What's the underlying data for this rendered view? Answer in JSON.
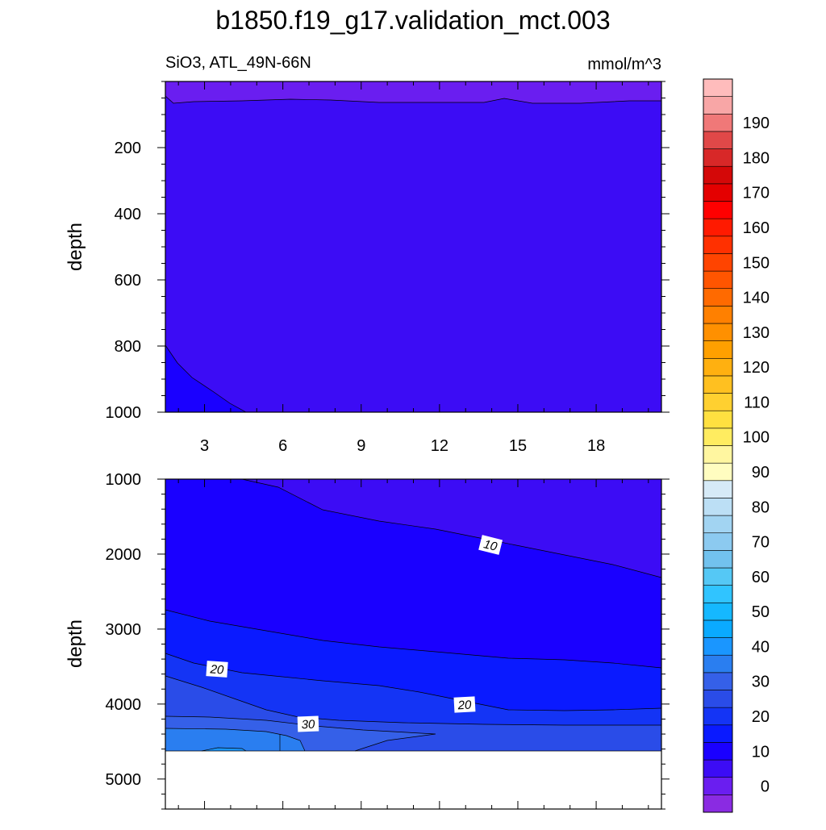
{
  "chart_data": [
    {
      "type": "contour",
      "panel": "top",
      "title": "b1850.f19_g17.validation_mct.003",
      "subtitle_left": "SiO3, ATL_49N-66N",
      "subtitle_right": "mmol/m^3",
      "ylabel": "depth",
      "xlabel": "",
      "xlim": [
        1.5,
        20.5
      ],
      "ylim": [
        1000,
        0
      ],
      "x_ticks": [
        3,
        6,
        9,
        12,
        15,
        18
      ],
      "x_tick_labels": [
        "3",
        "6",
        "9",
        "12",
        "15",
        "18"
      ],
      "y_ticks": [
        200,
        400,
        600,
        800,
        1000
      ],
      "y_tick_labels": [
        "200",
        "400",
        "600",
        "800",
        "1000"
      ],
      "contour_levels_shown": [
        5,
        10
      ],
      "contour_labels": []
    },
    {
      "type": "contour",
      "panel": "bottom",
      "ylabel": "depth",
      "xlabel": "",
      "xlim": [
        1.5,
        20.5
      ],
      "ylim": [
        5400,
        1000
      ],
      "y_ticks": [
        1000,
        2000,
        3000,
        4000,
        5000
      ],
      "y_tick_labels": [
        "1000",
        "2000",
        "3000",
        "4000",
        "5000"
      ],
      "contour_levels_shown": [
        5,
        10,
        15,
        20,
        25,
        30,
        35
      ],
      "contour_labels": [
        "10",
        "20",
        "20",
        "30"
      ]
    }
  ],
  "colorbar": {
    "orientation": "vertical",
    "levels": [
      -5,
      0,
      5,
      10,
      15,
      20,
      25,
      30,
      35,
      40,
      45,
      50,
      55,
      60,
      65,
      70,
      75,
      80,
      85,
      90,
      95,
      100,
      105,
      110,
      115,
      120,
      125,
      130,
      135,
      140,
      145,
      150,
      155,
      160,
      165,
      170,
      175,
      180,
      185,
      190,
      195,
      200
    ],
    "tick_labels": [
      "0",
      "10",
      "20",
      "30",
      "40",
      "50",
      "60",
      "70",
      "80",
      "90",
      "100",
      "110",
      "120",
      "130",
      "140",
      "150",
      "160",
      "170",
      "180",
      "190"
    ],
    "colors": [
      "#8a2be2",
      "#6a1ef0",
      "#3c0cf5",
      "#1a00ff",
      "#0a1aff",
      "#1434f5",
      "#2a4ce8",
      "#3560e8",
      "#2a7ef0",
      "#1a96ff",
      "#0aaaff",
      "#15b8ff",
      "#30c4ff",
      "#55c8f5",
      "#72c2ee",
      "#8ccaf0",
      "#a2d4f2",
      "#bcdff5",
      "#d6eaf7",
      "#fffdc0",
      "#fff6a0",
      "#ffec60",
      "#ffe040",
      "#ffd030",
      "#ffc020",
      "#ffb010",
      "#ffa000",
      "#ff9000",
      "#ff8000",
      "#ff6a00",
      "#ff5500",
      "#ff4400",
      "#ff3000",
      "#ff1a00",
      "#ff0000",
      "#e40000",
      "#d40808",
      "#d82828",
      "#e04848",
      "#f07878",
      "#f8a6a6",
      "#ffbcbc"
    ]
  }
}
